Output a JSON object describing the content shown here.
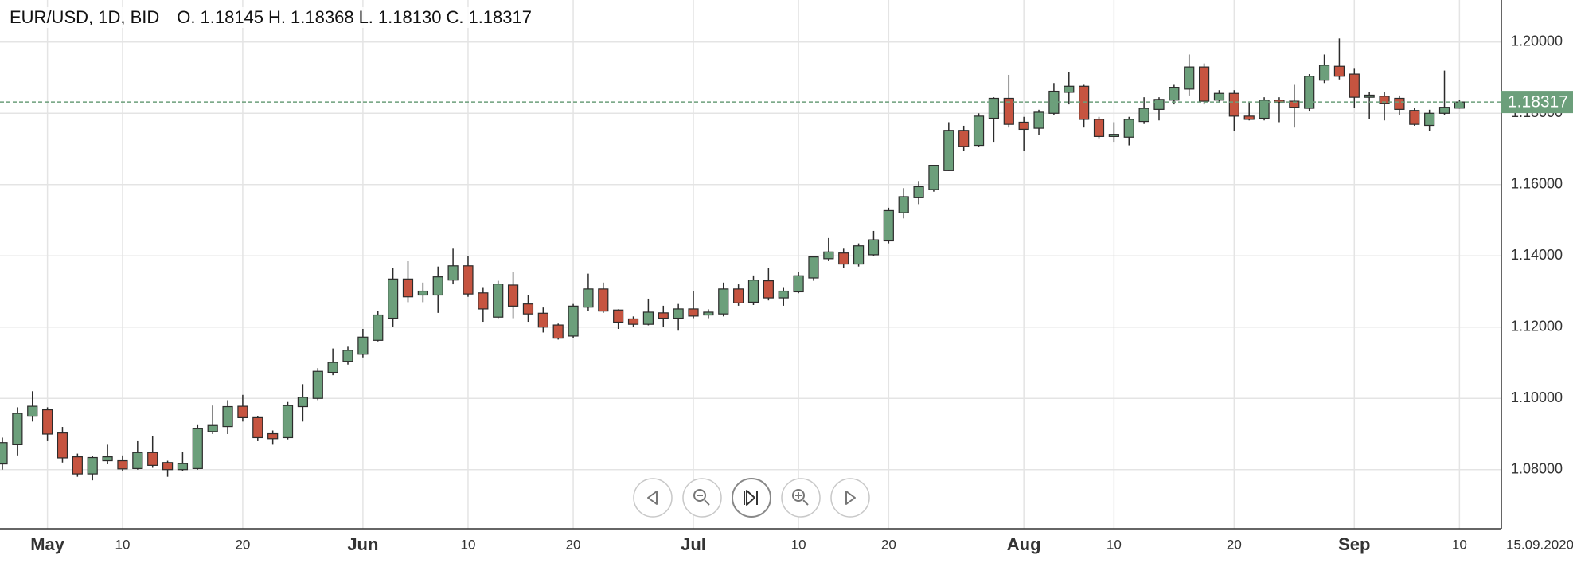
{
  "chart_data": {
    "type": "candlestick",
    "symbol": "EUR/USD, 1D, BID",
    "ohlc_header": [
      {
        "label": "O.",
        "value": "1.18145"
      },
      {
        "label": "H.",
        "value": "1.18368"
      },
      {
        "label": "L.",
        "value": "1.18130"
      },
      {
        "label": "C.",
        "value": "1.18317"
      }
    ],
    "date_label": "15.09.2020",
    "last_price": 1.18317,
    "up_color": "#6c9f7b",
    "down_color": "#c65440",
    "grid": true,
    "ylim": [
      1.0634,
      1.2118
    ],
    "yticks": [
      {
        "value": 1.08,
        "label": "1.08000"
      },
      {
        "value": 1.1,
        "label": "1.10000"
      },
      {
        "value": 1.12,
        "label": "1.12000"
      },
      {
        "value": 1.14,
        "label": "1.14000"
      },
      {
        "value": 1.16,
        "label": "1.16000"
      },
      {
        "value": 1.18,
        "label": "1.18000"
      },
      {
        "value": 1.2,
        "label": "1.20000"
      }
    ],
    "categories": [
      null,
      null,
      null,
      "May",
      null,
      null,
      null,
      null,
      "10",
      null,
      null,
      null,
      null,
      null,
      null,
      null,
      "20",
      null,
      null,
      null,
      null,
      null,
      null,
      null,
      "Jun",
      null,
      null,
      null,
      null,
      null,
      null,
      "10",
      null,
      null,
      null,
      null,
      null,
      null,
      "20",
      null,
      null,
      null,
      null,
      null,
      null,
      null,
      "Jul",
      null,
      null,
      null,
      null,
      null,
      null,
      "10",
      null,
      null,
      null,
      null,
      null,
      "20",
      null,
      null,
      null,
      null,
      null,
      null,
      null,
      null,
      "Aug",
      null,
      null,
      null,
      null,
      null,
      "10",
      null,
      null,
      null,
      null,
      null,
      null,
      null,
      "20",
      null,
      null,
      null,
      null,
      null,
      null,
      null,
      "Sep",
      null,
      null,
      null,
      null,
      null,
      null,
      "10"
    ],
    "open": [
      1.0816,
      1.087,
      1.095,
      1.0968,
      1.0903,
      1.0836,
      1.0788,
      1.0825,
      1.0825,
      1.0803,
      1.0848,
      1.082,
      1.08,
      1.0803,
      1.0907,
      1.0921,
      1.0978,
      1.0946,
      1.0901,
      1.089,
      1.0977,
      1.1,
      1.1073,
      1.1104,
      1.1124,
      1.1163,
      1.1225,
      1.1335,
      1.129,
      1.129,
      1.1332,
      1.1372,
      1.1296,
      1.1228,
      1.1318,
      1.1265,
      1.1239,
      1.1206,
      1.1175,
      1.1256,
      1.1307,
      1.1248,
      1.1223,
      1.1208,
      1.124,
      1.1225,
      1.1251,
      1.1234,
      1.1237,
      1.1307,
      1.127,
      1.133,
      1.1282,
      1.1299,
      1.1338,
      1.1392,
      1.1408,
      1.1377,
      1.1403,
      1.1442,
      1.1521,
      1.1563,
      1.1586,
      1.1639,
      1.1752,
      1.171,
      1.1786,
      1.1842,
      1.1775,
      1.1758,
      1.18,
      1.1859,
      1.1876,
      1.1783,
      1.1735,
      1.1733,
      1.1777,
      1.1811,
      1.1837,
      1.1868,
      1.193,
      1.1837,
      1.1856,
      1.1792,
      1.1786,
      1.1837,
      1.1834,
      1.1814,
      1.1893,
      1.1932,
      1.191,
      1.1845,
      1.1848,
      1.1842,
      1.1808,
      1.1766,
      1.18,
      1.18145
    ],
    "high": [
      1.089,
      1.0975,
      1.102,
      1.0975,
      1.092,
      1.0845,
      1.0838,
      1.087,
      1.084,
      1.088,
      1.0895,
      1.0825,
      1.085,
      1.0925,
      1.098,
      1.0995,
      1.101,
      1.095,
      1.091,
      1.099,
      1.104,
      1.1085,
      1.114,
      1.1145,
      1.1195,
      1.1245,
      1.1365,
      1.1385,
      1.1325,
      1.137,
      1.142,
      1.14,
      1.131,
      1.133,
      1.1355,
      1.129,
      1.1255,
      1.121,
      1.1265,
      1.135,
      1.1325,
      1.125,
      1.123,
      1.128,
      1.126,
      1.1265,
      1.13,
      1.125,
      1.1325,
      1.132,
      1.1345,
      1.1365,
      1.131,
      1.1355,
      1.14,
      1.145,
      1.142,
      1.1435,
      1.147,
      1.1535,
      1.159,
      1.161,
      1.1655,
      1.1775,
      1.1765,
      1.18,
      1.1845,
      1.1908,
      1.179,
      1.181,
      1.1885,
      1.1915,
      1.188,
      1.179,
      1.1775,
      1.179,
      1.1845,
      1.1845,
      1.188,
      1.1965,
      1.194,
      1.1865,
      1.1865,
      1.183,
      1.1845,
      1.1845,
      1.188,
      1.191,
      1.1965,
      1.201,
      1.1925,
      1.186,
      1.186,
      1.185,
      1.1815,
      1.181,
      1.192,
      1.18368
    ],
    "low": [
      1.08,
      1.084,
      1.0935,
      1.088,
      1.082,
      1.078,
      1.077,
      1.0815,
      1.0795,
      1.08,
      1.0805,
      1.078,
      1.0795,
      1.08,
      1.09,
      1.09,
      1.0935,
      1.088,
      1.087,
      1.0885,
      1.0935,
      1.0995,
      1.1065,
      1.1095,
      1.1115,
      1.116,
      1.12,
      1.127,
      1.127,
      1.124,
      1.132,
      1.1285,
      1.1215,
      1.1225,
      1.1225,
      1.1215,
      1.1185,
      1.1165,
      1.117,
      1.1245,
      1.124,
      1.1195,
      1.12,
      1.1205,
      1.12,
      1.119,
      1.1225,
      1.1225,
      1.123,
      1.126,
      1.1262,
      1.1275,
      1.126,
      1.1295,
      1.133,
      1.1385,
      1.1365,
      1.137,
      1.14,
      1.1435,
      1.1505,
      1.1545,
      1.158,
      1.1638,
      1.1695,
      1.1705,
      1.172,
      1.176,
      1.1695,
      1.174,
      1.1795,
      1.1825,
      1.176,
      1.173,
      1.172,
      1.171,
      1.177,
      1.178,
      1.1825,
      1.185,
      1.1825,
      1.183,
      1.175,
      1.178,
      1.178,
      1.1775,
      1.176,
      1.1805,
      1.1885,
      1.1895,
      1.1815,
      1.1785,
      1.178,
      1.1795,
      1.1765,
      1.175,
      1.1795,
      1.1813
    ],
    "close": [
      1.0876,
      1.0958,
      1.0978,
      1.09,
      1.0833,
      1.0788,
      1.0834,
      1.0836,
      1.0802,
      1.0848,
      1.0812,
      1.08,
      1.0817,
      1.0915,
      1.0924,
      1.0977,
      1.0946,
      1.089,
      1.0887,
      1.098,
      1.1003,
      1.1076,
      1.1101,
      1.1135,
      1.1172,
      1.1234,
      1.1335,
      1.1285,
      1.1301,
      1.1341,
      1.1372,
      1.1293,
      1.1251,
      1.1321,
      1.1259,
      1.1237,
      1.12,
      1.1169,
      1.1259,
      1.1307,
      1.1245,
      1.1214,
      1.1208,
      1.1242,
      1.1225,
      1.1251,
      1.1231,
      1.1242,
      1.1307,
      1.1268,
      1.1332,
      1.1282,
      1.1301,
      1.1344,
      1.1397,
      1.1411,
      1.1377,
      1.1428,
      1.1445,
      1.1527,
      1.1566,
      1.1594,
      1.1654,
      1.1752,
      1.1707,
      1.1792,
      1.1842,
      1.1769,
      1.1755,
      1.1803,
      1.1862,
      1.1876,
      1.1783,
      1.1735,
      1.1741,
      1.1783,
      1.1814,
      1.1839,
      1.1873,
      1.193,
      1.1834,
      1.1856,
      1.1792,
      1.1783,
      1.1837,
      1.1831,
      1.1817,
      1.1904,
      1.1935,
      1.1904,
      1.1845,
      1.1851,
      1.1828,
      1.1811,
      1.1769,
      1.18,
      1.1817,
      1.18317
    ]
  }
}
